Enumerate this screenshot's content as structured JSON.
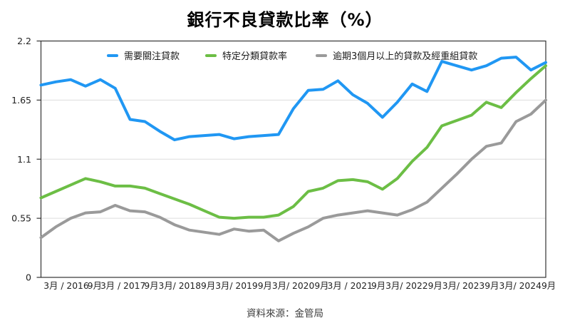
{
  "title": "銀行不良貸款比率（%）",
  "source": "資料來源：金管局",
  "colors": {
    "blue": "#2097F3",
    "green": "#6CBE45",
    "gray": "#9A9A9A",
    "grid": "#DDDDDD",
    "axis": "#333333",
    "tick_text": "#222222"
  },
  "chart_data": {
    "type": "line",
    "title": "銀行不良貸款比率（%）",
    "ylim": [
      0,
      2.2
    ],
    "y_ticks": [
      0,
      0.55,
      1.1,
      1.65,
      2.2
    ],
    "y_tick_labels": [
      "0",
      "0.55",
      "1.1",
      "1.65",
      "2.2"
    ],
    "grid": "horizontal",
    "legend_position": "top-inside",
    "x_tick_labels": [
      "3月 / 2016",
      "9月",
      "3月 / 2017",
      "9月",
      "3月/ 2018",
      "9月",
      "3月/ 2019",
      "9月",
      "3月/ 2020",
      "9月",
      "3月 / 2021",
      "9月",
      "3月/ 2022",
      "9月",
      "3月/ 2023",
      "9月",
      "3月/ 2024",
      "9月"
    ],
    "series": [
      {
        "name": "需要關注貸款",
        "color_key": "blue",
        "values": [
          1.79,
          1.82,
          1.84,
          1.78,
          1.84,
          1.76,
          1.47,
          1.45,
          1.36,
          1.28,
          1.31,
          1.32,
          1.33,
          1.29,
          1.31,
          1.32,
          1.33,
          1.57,
          1.74,
          1.75,
          1.83,
          1.7,
          1.62,
          1.49,
          1.63,
          1.8,
          1.73,
          2.01,
          1.97,
          1.93,
          1.97,
          2.04,
          2.05,
          1.93,
          2.0
        ]
      },
      {
        "name": "特定分類貸款率",
        "color_key": "green",
        "values": [
          0.74,
          0.8,
          0.86,
          0.92,
          0.89,
          0.85,
          0.85,
          0.83,
          0.78,
          0.73,
          0.68,
          0.62,
          0.56,
          0.55,
          0.56,
          0.56,
          0.58,
          0.66,
          0.8,
          0.83,
          0.9,
          0.91,
          0.89,
          0.82,
          0.92,
          1.08,
          1.21,
          1.41,
          1.46,
          1.51,
          1.63,
          1.58,
          1.72,
          1.85,
          1.97
        ]
      },
      {
        "name": "逾期3個月以上的貸款及經重組貸款",
        "color_key": "gray",
        "values": [
          0.37,
          0.47,
          0.55,
          0.6,
          0.61,
          0.67,
          0.62,
          0.61,
          0.56,
          0.49,
          0.44,
          0.42,
          0.4,
          0.45,
          0.43,
          0.44,
          0.34,
          0.41,
          0.47,
          0.55,
          0.58,
          0.6,
          0.62,
          0.6,
          0.58,
          0.63,
          0.7,
          0.83,
          0.96,
          1.1,
          1.22,
          1.25,
          1.45,
          1.52,
          1.65
        ]
      }
    ]
  }
}
